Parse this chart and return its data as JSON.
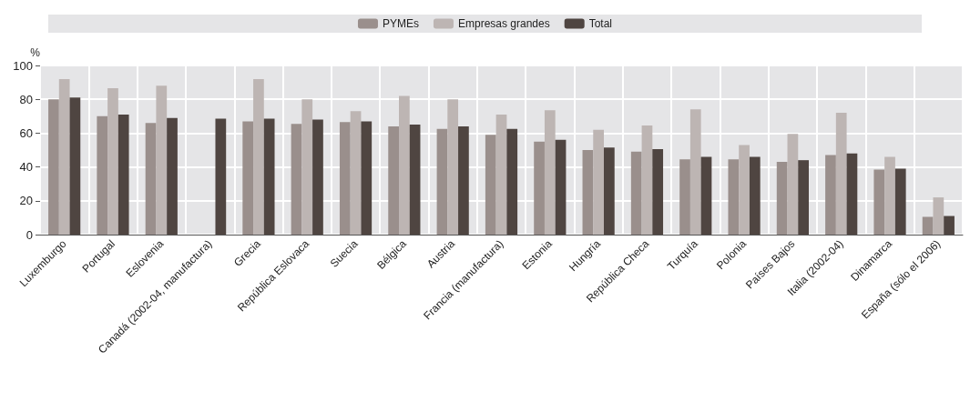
{
  "chart_data": {
    "type": "bar",
    "ylabel": "%",
    "categories": [
      "Luxemburgo",
      "Portugal",
      "Eslovenia",
      "Canadá (2002-04, manufactura)",
      "Grecia",
      "República Eslovaca",
      "Suecia",
      "Bélgica",
      "Austria",
      "Francia (manufactura)",
      "Estonia",
      "Hungría",
      "República Checa",
      "Turquía",
      "Polonia",
      "Países Bajos",
      "Italia (2002-04)",
      "Dinamarca",
      "España (sólo el 2006)"
    ],
    "series": [
      {
        "name": "PYMEs",
        "color": "#9a8f8c",
        "values": [
          80,
          70,
          66,
          null,
          67,
          65.5,
          66.5,
          64,
          62.5,
          59,
          55,
          50,
          49,
          44.5,
          44.5,
          43,
          47,
          38.5,
          10.5
        ]
      },
      {
        "name": "Empresas grandes",
        "color": "#bdb5b3",
        "values": [
          92,
          86.5,
          88,
          null,
          92,
          80,
          73,
          82,
          80,
          71,
          73.5,
          62,
          64.5,
          74,
          53,
          59.5,
          72,
          46,
          22
        ]
      },
      {
        "name": "Total",
        "color": "#4f4541",
        "values": [
          81,
          71,
          69,
          68.5,
          68.5,
          68,
          67,
          65,
          64,
          62.5,
          56,
          51.5,
          50.5,
          46,
          46,
          44,
          48,
          39,
          11
        ]
      }
    ],
    "ylim": [
      0,
      100
    ],
    "yticks": [
      0,
      20,
      40,
      60,
      80,
      100
    ],
    "grid": true,
    "legend": "top"
  }
}
